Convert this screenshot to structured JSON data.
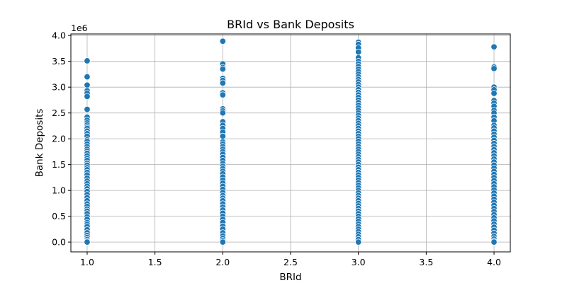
{
  "chart_data": {
    "type": "scatter",
    "title": "BRId vs Bank Deposits",
    "xlabel": "BRId",
    "ylabel": "Bank Deposits",
    "offset_label": "1e6",
    "xlim": [
      0.88,
      4.12
    ],
    "ylim": [
      -0.19,
      4.03
    ],
    "scale_factor": 1000000,
    "xticks": [
      1.0,
      1.5,
      2.0,
      2.5,
      3.0,
      3.5,
      4.0
    ],
    "xtick_labels": [
      "1.0",
      "1.5",
      "2.0",
      "2.5",
      "3.0",
      "3.5",
      "4.0"
    ],
    "yticks": [
      0.0,
      0.5,
      1.0,
      1.5,
      2.0,
      2.5,
      3.0,
      3.5,
      4.0
    ],
    "ytick_labels": [
      "0.0",
      "0.5",
      "1.0",
      "1.5",
      "2.0",
      "2.5",
      "3.0",
      "3.5",
      "4.0"
    ],
    "grid": true,
    "marker_color": "#1f77b4",
    "marker_edge_color": "#ffffff",
    "series": [
      {
        "x": 1.0,
        "y": [
          3.51,
          3.2,
          3.04,
          2.93,
          2.88,
          2.82,
          2.57,
          2.42,
          2.36,
          2.31,
          2.27,
          2.23,
          2.2,
          2.15,
          2.1,
          2.05,
          1.98,
          1.95,
          1.9,
          1.85,
          1.8,
          1.76,
          1.72,
          1.67,
          1.62,
          1.58,
          1.53,
          1.49,
          1.44,
          1.4,
          1.35,
          1.3,
          1.24,
          1.18,
          1.13,
          1.08,
          1.03,
          0.98,
          0.92,
          0.86,
          0.8,
          0.74,
          0.69,
          0.64,
          0.6,
          0.55,
          0.49,
          0.44,
          0.38,
          0.34,
          0.3,
          0.24,
          0.18,
          0.13,
          0.09,
          0.05,
          0.02,
          0.0
        ]
      },
      {
        "x": 2.0,
        "y": [
          3.89,
          3.45,
          3.38,
          3.35,
          3.17,
          3.13,
          3.08,
          2.89,
          2.85,
          2.58,
          2.54,
          2.5,
          2.33,
          2.26,
          2.2,
          2.13,
          2.05,
          1.94,
          1.9,
          1.85,
          1.8,
          1.75,
          1.7,
          1.64,
          1.58,
          1.52,
          1.47,
          1.42,
          1.37,
          1.32,
          1.26,
          1.2,
          1.14,
          1.08,
          1.02,
          0.96,
          0.9,
          0.85,
          0.8,
          0.74,
          0.68,
          0.62,
          0.56,
          0.5,
          0.44,
          0.38,
          0.31,
          0.25,
          0.18,
          0.12,
          0.07,
          0.03,
          0.0
        ]
      },
      {
        "x": 3.0,
        "y": [
          3.87,
          3.83,
          3.76,
          3.68,
          3.57,
          3.5,
          3.45,
          3.4,
          3.35,
          3.3,
          3.25,
          3.2,
          3.15,
          3.1,
          3.05,
          3.0,
          2.95,
          2.9,
          2.85,
          2.8,
          2.75,
          2.7,
          2.65,
          2.6,
          2.55,
          2.5,
          2.45,
          2.4,
          2.35,
          2.3,
          2.25,
          2.2,
          2.15,
          2.1,
          2.05,
          2.0,
          1.95,
          1.9,
          1.85,
          1.8,
          1.75,
          1.7,
          1.65,
          1.6,
          1.55,
          1.5,
          1.45,
          1.4,
          1.35,
          1.3,
          1.25,
          1.2,
          1.15,
          1.1,
          1.05,
          1.0,
          0.95,
          0.9,
          0.85,
          0.8,
          0.75,
          0.7,
          0.65,
          0.6,
          0.55,
          0.5,
          0.45,
          0.4,
          0.35,
          0.3,
          0.25,
          0.2,
          0.15,
          0.1,
          0.05,
          0.0
        ]
      },
      {
        "x": 4.0,
        "y": [
          3.78,
          3.39,
          3.36,
          3.0,
          2.95,
          2.88,
          2.74,
          2.69,
          2.63,
          2.55,
          2.5,
          2.42,
          2.35,
          2.26,
          2.21,
          2.15,
          2.09,
          2.03,
          1.97,
          1.91,
          1.85,
          1.79,
          1.73,
          1.67,
          1.61,
          1.55,
          1.49,
          1.43,
          1.37,
          1.31,
          1.25,
          1.19,
          1.13,
          1.07,
          1.01,
          0.95,
          0.89,
          0.83,
          0.77,
          0.71,
          0.65,
          0.59,
          0.53,
          0.47,
          0.41,
          0.35,
          0.29,
          0.23,
          0.17,
          0.11,
          0.06,
          0.02,
          0.0
        ]
      }
    ]
  }
}
